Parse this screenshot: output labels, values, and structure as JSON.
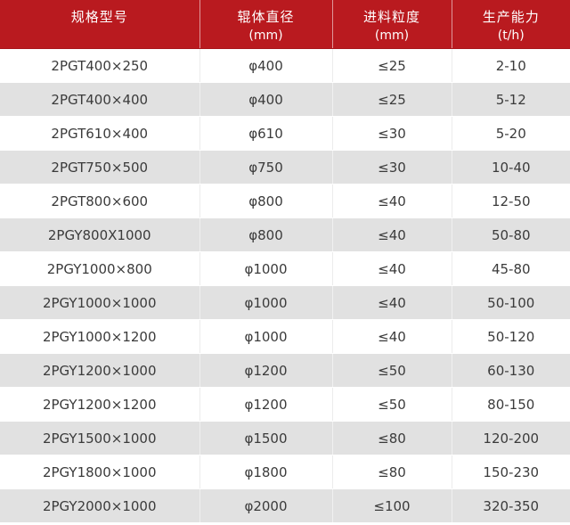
{
  "chart_data": {
    "type": "table",
    "columns": [
      {
        "label": "规格型号",
        "unit": ""
      },
      {
        "label": "辊体直径",
        "unit": "(mm)"
      },
      {
        "label": "进料粒度",
        "unit": "(mm)"
      },
      {
        "label": "生产能力",
        "unit": "(t/h)"
      }
    ],
    "rows": [
      [
        "2PGT400×250",
        "φ400",
        "≤25",
        "2-10"
      ],
      [
        "2PGT400×400",
        "φ400",
        "≤25",
        "5-12"
      ],
      [
        "2PGT610×400",
        "φ610",
        "≤30",
        "5-20"
      ],
      [
        "2PGT750×500",
        "φ750",
        "≤30",
        "10-40"
      ],
      [
        "2PGT800×600",
        "φ800",
        "≤40",
        "12-50"
      ],
      [
        "2PGY800X1000",
        "φ800",
        "≤40",
        "50-80"
      ],
      [
        "2PGY1000×800",
        "φ1000",
        "≤40",
        "45-80"
      ],
      [
        "2PGY1000×1000",
        "φ1000",
        "≤40",
        "50-100"
      ],
      [
        "2PGY1000×1200",
        "φ1000",
        "≤40",
        "50-120"
      ],
      [
        "2PGY1200×1000",
        "φ1200",
        "≤50",
        "60-130"
      ],
      [
        "2PGY1200×1200",
        "φ1200",
        "≤50",
        "80-150"
      ],
      [
        "2PGY1500×1000",
        "φ1500",
        "≤80",
        "120-200"
      ],
      [
        "2PGY1800×1000",
        "φ1800",
        "≤80",
        "150-230"
      ],
      [
        "2PGY2000×1000",
        "φ2000",
        "≤100",
        "320-350"
      ]
    ]
  },
  "colors": {
    "header_bg": "#b91a1f",
    "header_border": "#a7161b",
    "header_text": "#ffffff",
    "row_odd_bg": "#ffffff",
    "row_even_bg": "#e1e1e1",
    "body_text": "#3b3b3b"
  }
}
